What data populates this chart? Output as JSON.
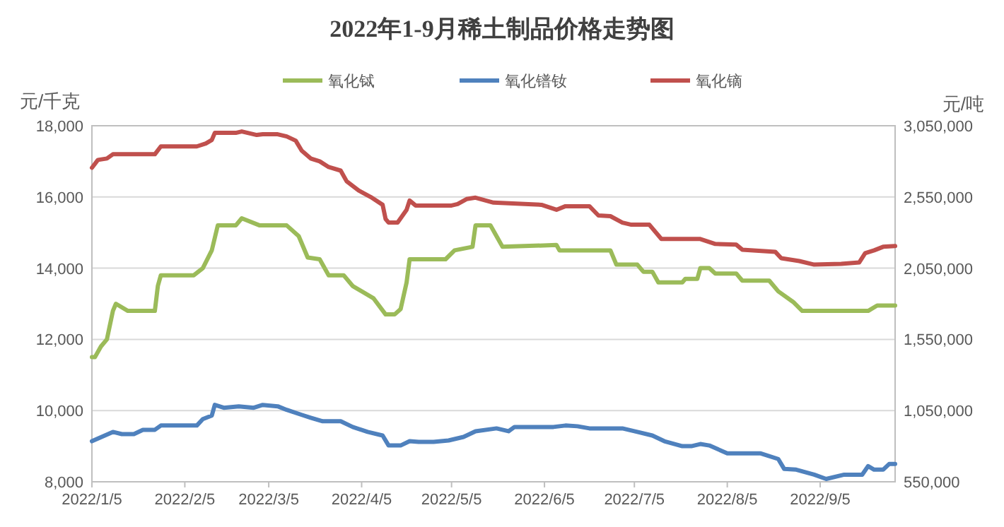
{
  "chart_data": {
    "type": "line",
    "title": "2022年1-9月稀土制品价格走势图",
    "ylabel": "元/千克",
    "y2label": "元/吨",
    "xlim": [
      "2022-01-05",
      "2022-09-30"
    ],
    "xticks": [
      {
        "value": "2022-01-05",
        "label": "2022/1/5"
      },
      {
        "value": "2022-02-05",
        "label": "2022/2/5"
      },
      {
        "value": "2022-03-05",
        "label": "2022/3/5"
      },
      {
        "value": "2022-04-05",
        "label": "2022/4/5"
      },
      {
        "value": "2022-05-05",
        "label": "2022/5/5"
      },
      {
        "value": "2022-06-05",
        "label": "2022/6/5"
      },
      {
        "value": "2022-07-05",
        "label": "2022/7/5"
      },
      {
        "value": "2022-08-05",
        "label": "2022/8/5"
      },
      {
        "value": "2022-09-05",
        "label": "2022/9/5"
      }
    ],
    "ylim": [
      8000,
      18000
    ],
    "yticks": [
      {
        "value": 8000,
        "label": "8,000"
      },
      {
        "value": 10000,
        "label": "10,000"
      },
      {
        "value": 12000,
        "label": "12,000"
      },
      {
        "value": 14000,
        "label": "14,000"
      },
      {
        "value": 16000,
        "label": "16,000"
      },
      {
        "value": 18000,
        "label": "18,000"
      }
    ],
    "y2lim": [
      550000,
      3050000
    ],
    "y2ticks": [
      {
        "value": 550000,
        "label": "550,000"
      },
      {
        "value": 1050000,
        "label": "1,050,000"
      },
      {
        "value": 1550000,
        "label": "1,550,000"
      },
      {
        "value": 2050000,
        "label": "2,050,000"
      },
      {
        "value": 2550000,
        "label": "2,550,000"
      },
      {
        "value": 3050000,
        "label": "3,050,000"
      }
    ],
    "grid": "y",
    "legend": "top",
    "series": [
      {
        "name": "氧化铽",
        "color": "#9bbb59",
        "x": [
          "2022-01-05",
          "2022-01-06",
          "2022-01-08",
          "2022-01-10",
          "2022-01-12",
          "2022-01-13",
          "2022-01-17",
          "2022-01-26",
          "2022-01-27",
          "2022-01-28",
          "2022-02-08",
          "2022-02-11",
          "2022-02-14",
          "2022-02-16",
          "2022-02-22",
          "2022-02-24",
          "2022-03-02",
          "2022-03-11",
          "2022-03-15",
          "2022-03-18",
          "2022-03-22",
          "2022-03-25",
          "2022-03-30",
          "2022-04-02",
          "2022-04-09",
          "2022-04-13",
          "2022-04-16",
          "2022-04-18",
          "2022-04-20",
          "2022-04-21",
          "2022-05-03",
          "2022-05-06",
          "2022-05-12",
          "2022-05-13",
          "2022-05-18",
          "2022-05-20",
          "2022-05-22",
          "2022-06-09",
          "2022-06-10",
          "2022-06-27",
          "2022-06-29",
          "2022-07-06",
          "2022-07-08",
          "2022-07-11",
          "2022-07-13",
          "2022-07-21",
          "2022-07-22",
          "2022-07-26",
          "2022-07-27",
          "2022-07-30",
          "2022-08-01",
          "2022-08-08",
          "2022-08-10",
          "2022-08-19",
          "2022-08-22",
          "2022-08-27",
          "2022-08-30",
          "2022-09-21",
          "2022-09-24",
          "2022-09-30"
        ],
        "values": [
          11500,
          11500,
          11800,
          12000,
          12800,
          13000,
          12800,
          12800,
          13500,
          13800,
          13800,
          14000,
          14500,
          15200,
          15200,
          15400,
          15200,
          15200,
          14900,
          14300,
          14250,
          13800,
          13800,
          13500,
          13150,
          12700,
          12700,
          12850,
          13600,
          14250,
          14250,
          14500,
          14600,
          15200,
          15200,
          14900,
          14600,
          14650,
          14500,
          14500,
          14100,
          14100,
          13900,
          13900,
          13600,
          13600,
          13700,
          13700,
          14000,
          14000,
          13850,
          13850,
          13650,
          13650,
          13350,
          13050,
          12800,
          12800,
          12950,
          12950
        ]
      },
      {
        "name": "氧化镨钕",
        "color": "#4f81bd",
        "axis": "y2",
        "x": [
          "2022-01-05",
          "2022-01-12",
          "2022-01-15",
          "2022-01-19",
          "2022-01-22",
          "2022-01-26",
          "2022-01-28",
          "2022-02-09",
          "2022-02-11",
          "2022-02-14",
          "2022-02-15",
          "2022-02-18",
          "2022-02-23",
          "2022-02-28",
          "2022-03-03",
          "2022-03-08",
          "2022-03-11",
          "2022-03-16",
          "2022-03-19",
          "2022-03-23",
          "2022-03-29",
          "2022-04-02",
          "2022-04-07",
          "2022-04-12",
          "2022-04-14",
          "2022-04-18",
          "2022-04-21",
          "2022-04-24",
          "2022-04-29",
          "2022-05-04",
          "2022-05-09",
          "2022-05-13",
          "2022-05-20",
          "2022-05-24",
          "2022-05-26",
          "2022-06-08",
          "2022-06-12",
          "2022-06-16",
          "2022-06-20",
          "2022-07-01",
          "2022-07-06",
          "2022-07-11",
          "2022-07-15",
          "2022-07-21",
          "2022-07-24",
          "2022-07-27",
          "2022-07-30",
          "2022-08-05",
          "2022-08-16",
          "2022-08-22",
          "2022-08-24",
          "2022-08-28",
          "2022-09-03",
          "2022-09-07",
          "2022-09-13",
          "2022-09-19",
          "2022-09-21",
          "2022-09-23",
          "2022-09-26",
          "2022-09-28",
          "2022-09-30"
        ],
        "values": [
          835000,
          900000,
          885000,
          885000,
          915000,
          915000,
          945000,
          945000,
          990000,
          1015000,
          1090000,
          1070000,
          1080000,
          1070000,
          1090000,
          1080000,
          1055000,
          1020000,
          1000000,
          975000,
          975000,
          935000,
          900000,
          875000,
          805000,
          805000,
          835000,
          830000,
          830000,
          840000,
          865000,
          905000,
          925000,
          905000,
          935000,
          935000,
          945000,
          940000,
          925000,
          925000,
          900000,
          875000,
          835000,
          800000,
          800000,
          815000,
          805000,
          750000,
          750000,
          710000,
          640000,
          635000,
          600000,
          570000,
          600000,
          600000,
          660000,
          635000,
          635000,
          675000,
          675000
        ]
      },
      {
        "name": "氧化镝",
        "color": "#c0504d",
        "axis": "y2",
        "x": [
          "2022-01-05",
          "2022-01-07",
          "2022-01-10",
          "2022-01-12",
          "2022-01-26",
          "2022-01-28",
          "2022-02-09",
          "2022-02-12",
          "2022-02-14",
          "2022-02-15",
          "2022-02-22",
          "2022-02-24",
          "2022-03-01",
          "2022-03-03",
          "2022-03-08",
          "2022-03-11",
          "2022-03-14",
          "2022-03-16",
          "2022-03-19",
          "2022-03-22",
          "2022-03-25",
          "2022-03-29",
          "2022-03-31",
          "2022-04-04",
          "2022-04-08",
          "2022-04-12",
          "2022-04-13",
          "2022-04-14",
          "2022-04-17",
          "2022-04-20",
          "2022-04-21",
          "2022-04-23",
          "2022-05-05",
          "2022-05-07",
          "2022-05-10",
          "2022-05-13",
          "2022-05-19",
          "2022-06-04",
          "2022-06-09",
          "2022-06-12",
          "2022-06-20",
          "2022-06-23",
          "2022-06-27",
          "2022-07-01",
          "2022-07-04",
          "2022-07-10",
          "2022-07-14",
          "2022-07-27",
          "2022-08-01",
          "2022-08-08",
          "2022-08-10",
          "2022-08-21",
          "2022-08-23",
          "2022-08-29",
          "2022-09-03",
          "2022-09-12",
          "2022-09-18",
          "2022-09-20",
          "2022-09-23",
          "2022-09-26",
          "2022-09-30"
        ],
        "values": [
          2755000,
          2810000,
          2820000,
          2850000,
          2850000,
          2905000,
          2905000,
          2925000,
          2950000,
          3000000,
          3000000,
          3010000,
          2985000,
          2990000,
          2990000,
          2975000,
          2945000,
          2875000,
          2820000,
          2800000,
          2760000,
          2735000,
          2660000,
          2595000,
          2550000,
          2495000,
          2395000,
          2370000,
          2370000,
          2460000,
          2525000,
          2490000,
          2490000,
          2500000,
          2535000,
          2545000,
          2510000,
          2495000,
          2460000,
          2485000,
          2485000,
          2420000,
          2415000,
          2370000,
          2355000,
          2355000,
          2255000,
          2255000,
          2220000,
          2215000,
          2180000,
          2165000,
          2120000,
          2100000,
          2075000,
          2080000,
          2090000,
          2155000,
          2175000,
          2200000,
          2205000
        ]
      }
    ]
  }
}
